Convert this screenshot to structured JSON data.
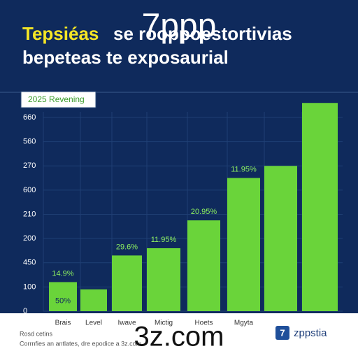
{
  "chart_data": {
    "type": "bar",
    "title_highlight": "Tepsiéas",
    "title_rest": "se rooppoestortivias",
    "subtitle": "bepeteas te exposaurial",
    "overlay_text": "7ppp",
    "legend_label": "2025 Revening",
    "categories": [
      "Brais",
      "Level",
      "Iwave",
      "Mictig",
      "Hoets",
      "Mgyta",
      null,
      null
    ],
    "values": [
      1.2,
      0.9,
      2.3,
      2.6,
      3.75,
      5.5,
      6.0,
      8.6
    ],
    "annotations": [
      "14.9%",
      null,
      "29.6%",
      "11.95%",
      "20.95%",
      "11.95%",
      null,
      null
    ],
    "inner_label": "50%",
    "color": "#6ad43a",
    "ylim": [
      0,
      8.8
    ],
    "yticks": [
      {
        "value": 0,
        "label": "0"
      },
      {
        "value": 1,
        "label": "100"
      },
      {
        "value": 2,
        "label": "450"
      },
      {
        "value": 3,
        "label": "200"
      },
      {
        "value": 4,
        "label": "210"
      },
      {
        "value": 5,
        "label": "600"
      },
      {
        "value": 6,
        "label": "270"
      },
      {
        "value": 7,
        "label": "560"
      },
      {
        "value": 8,
        "label": "660"
      }
    ],
    "grid": true,
    "footer_title": "Rosd cetins",
    "footer_text": "Corrnfies an antlates, dre epodice a 3z.com",
    "brand_icon": "7",
    "brand_name": "zppstia",
    "watermark": "3z.com"
  }
}
